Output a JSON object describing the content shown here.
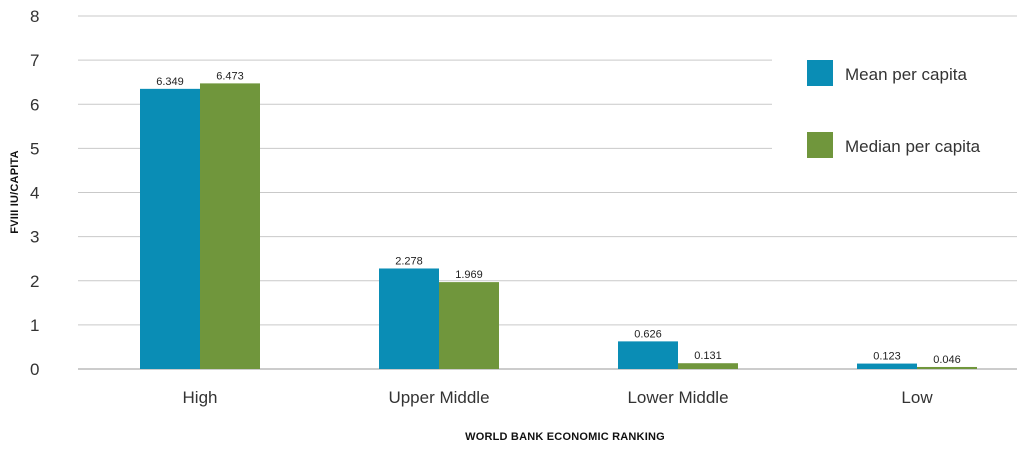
{
  "chart_data": {
    "type": "bar",
    "title": "",
    "xlabel": "WORLD BANK ECONOMIC RANKING",
    "ylabel": "FVIII IU/CAPITA",
    "ylim": [
      0,
      8
    ],
    "yticks": [
      0,
      1,
      2,
      3,
      4,
      5,
      6,
      7,
      8
    ],
    "grid": true,
    "legend_position": "top-right",
    "categories": [
      "High",
      "Upper Middle",
      "Lower Middle",
      "Low"
    ],
    "series": [
      {
        "name": "Mean per capita",
        "color": "#0a8db5",
        "values": [
          6.349,
          2.278,
          0.626,
          0.123
        ],
        "labels": [
          "6.349",
          "2.278",
          "0.626",
          "0.123"
        ]
      },
      {
        "name": "Median per capita",
        "color": "#70963c",
        "values": [
          6.473,
          1.969,
          0.131,
          0.046
        ],
        "labels": [
          "6.473",
          "1.969",
          "0.131",
          "0.046"
        ]
      }
    ]
  }
}
